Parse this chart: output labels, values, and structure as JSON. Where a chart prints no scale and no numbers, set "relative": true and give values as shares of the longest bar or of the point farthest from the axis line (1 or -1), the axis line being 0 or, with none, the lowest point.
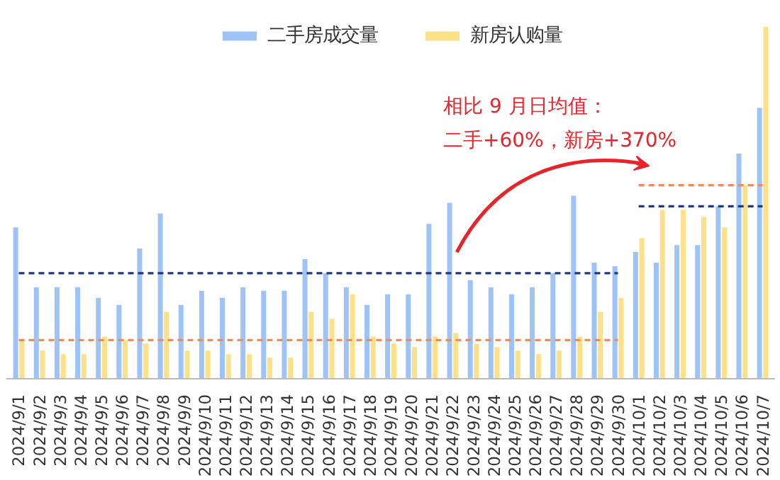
{
  "chart_data": {
    "type": "bar",
    "relative": true,
    "legend": "top",
    "grid": false,
    "categories": [
      "2024/9/1",
      "2024/9/2",
      "2024/9/3",
      "2024/9/4",
      "2024/9/5",
      "2024/9/6",
      "2024/9/7",
      "2024/9/8",
      "2024/9/9",
      "2024/9/10",
      "2024/9/11",
      "2024/9/12",
      "2024/9/13",
      "2024/9/14",
      "2024/9/15",
      "2024/9/16",
      "2024/9/17",
      "2024/9/18",
      "2024/9/19",
      "2024/9/20",
      "2024/9/21",
      "2024/9/22",
      "2024/9/23",
      "2024/9/24",
      "2024/9/25",
      "2024/9/26",
      "2024/9/27",
      "2024/9/28",
      "2024/9/29",
      "2024/9/30",
      "2024/10/1",
      "2024/10/2",
      "2024/10/3",
      "2024/10/4",
      "2024/10/5",
      "2024/10/6",
      "2024/10/7"
    ],
    "series": [
      {
        "name": "二手房成交量",
        "color": "#9dc3f7",
        "values": [
          0.43,
          0.26,
          0.26,
          0.26,
          0.23,
          0.21,
          0.37,
          0.47,
          0.21,
          0.25,
          0.23,
          0.26,
          0.25,
          0.25,
          0.34,
          0.3,
          0.26,
          0.21,
          0.24,
          0.24,
          0.44,
          0.5,
          0.28,
          0.26,
          0.24,
          0.26,
          0.3,
          0.52,
          0.33,
          0.32,
          0.36,
          0.33,
          0.38,
          0.38,
          0.49,
          0.64,
          0.77
        ]
      },
      {
        "name": "新房认购量",
        "color": "#fde08a",
        "values": [
          0.11,
          0.08,
          0.07,
          0.07,
          0.12,
          0.11,
          0.1,
          0.19,
          0.08,
          0.08,
          0.07,
          0.07,
          0.06,
          0.06,
          0.19,
          0.17,
          0.24,
          0.12,
          0.1,
          0.09,
          0.12,
          0.13,
          0.1,
          0.09,
          0.08,
          0.07,
          0.08,
          0.12,
          0.19,
          0.23,
          0.4,
          0.48,
          0.48,
          0.46,
          0.43,
          0.55,
          1
        ]
      },
      {
        "type": "line",
        "line_style": "dashed",
        "color": "#1f3a7a",
        "values": [
          0.3,
          0.3,
          0.3,
          0.3,
          0.3,
          0.3,
          0.3,
          0.3,
          0.3,
          0.3,
          0.3,
          0.3,
          0.3,
          0.3,
          0.3,
          0.3,
          0.3,
          0.3,
          0.3,
          0.3,
          0.3,
          0.3,
          0.3,
          0.3,
          0.3,
          0.3,
          0.3,
          0.3,
          0.3,
          0.3,
          null,
          null,
          null,
          null,
          null,
          null,
          null
        ]
      },
      {
        "type": "line",
        "line_style": "dashed",
        "color": "#f08c5a",
        "values": [
          0.11,
          0.11,
          0.11,
          0.11,
          0.11,
          0.11,
          0.11,
          0.11,
          0.11,
          0.11,
          0.11,
          0.11,
          0.11,
          0.11,
          0.11,
          0.11,
          0.11,
          0.11,
          0.11,
          0.11,
          0.11,
          0.11,
          0.11,
          0.11,
          0.11,
          0.11,
          0.11,
          0.11,
          0.11,
          0.11,
          null,
          null,
          null,
          null,
          null,
          null,
          null
        ]
      },
      {
        "type": "line",
        "line_style": "dashed",
        "color": "#1f3a7a",
        "values": [
          null,
          null,
          null,
          null,
          null,
          null,
          null,
          null,
          null,
          null,
          null,
          null,
          null,
          null,
          null,
          null,
          null,
          null,
          null,
          null,
          null,
          null,
          null,
          null,
          null,
          null,
          null,
          null,
          null,
          null,
          0.49,
          0.49,
          0.49,
          0.49,
          0.49,
          0.49,
          0.49
        ]
      },
      {
        "type": "line",
        "line_style": "dashed",
        "color": "#f08c5a",
        "values": [
          null,
          null,
          null,
          null,
          null,
          null,
          null,
          null,
          null,
          null,
          null,
          null,
          null,
          null,
          null,
          null,
          null,
          null,
          null,
          null,
          null,
          null,
          null,
          null,
          null,
          null,
          null,
          null,
          null,
          null,
          0.55,
          0.55,
          0.55,
          0.55,
          0.55,
          0.55,
          0.55
        ]
      }
    ],
    "annotations": [
      "相比 9 月日均值：",
      "二手+60%，新房+370%"
    ]
  }
}
